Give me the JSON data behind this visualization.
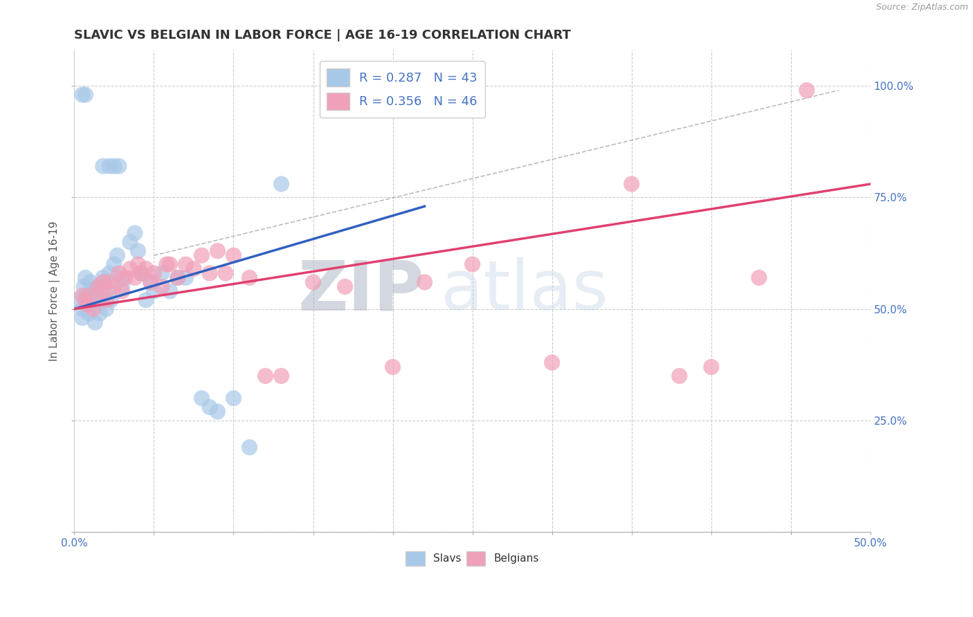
{
  "title": "SLAVIC VS BELGIAN IN LABOR FORCE | AGE 16-19 CORRELATION CHART",
  "source_text": "Source: ZipAtlas.com",
  "ylabel": "In Labor Force | Age 16-19",
  "xlim": [
    0.0,
    0.5
  ],
  "ylim": [
    0.0,
    1.08
  ],
  "slavs_R": 0.287,
  "slavs_N": 43,
  "belgians_R": 0.356,
  "belgians_N": 46,
  "slav_color": "#a8c8e8",
  "belgian_color": "#f0a0b8",
  "slav_line_color": "#3060c0",
  "belgian_line_color": "#e04070",
  "ref_line_color": "#aaaaaa",
  "slav_scatter_x": [
    0.003,
    0.005,
    0.005,
    0.006,
    0.007,
    0.008,
    0.009,
    0.01,
    0.01,
    0.011,
    0.012,
    0.013,
    0.014,
    0.015,
    0.016,
    0.017,
    0.018,
    0.019,
    0.02,
    0.021,
    0.022,
    0.023,
    0.025,
    0.027,
    0.03,
    0.03,
    0.035,
    0.038,
    0.04,
    0.042,
    0.045,
    0.048,
    0.05,
    0.055,
    0.06,
    0.065,
    0.07,
    0.08,
    0.085,
    0.09,
    0.1,
    0.11,
    0.13
  ],
  "slav_scatter_y": [
    0.52,
    0.48,
    0.5,
    0.55,
    0.57,
    0.53,
    0.49,
    0.51,
    0.56,
    0.54,
    0.52,
    0.47,
    0.53,
    0.55,
    0.49,
    0.52,
    0.57,
    0.56,
    0.5,
    0.54,
    0.58,
    0.52,
    0.6,
    0.62,
    0.55,
    0.57,
    0.65,
    0.67,
    0.63,
    0.58,
    0.52,
    0.56,
    0.54,
    0.58,
    0.54,
    0.57,
    0.57,
    0.3,
    0.28,
    0.27,
    0.3,
    0.19,
    0.78
  ],
  "slav_outlier_top_x": [
    0.005,
    0.007,
    0.018,
    0.022,
    0.025,
    0.028
  ],
  "slav_outlier_top_y": [
    0.98,
    0.98,
    0.82,
    0.82,
    0.82,
    0.82
  ],
  "belgian_scatter_x": [
    0.005,
    0.007,
    0.008,
    0.01,
    0.012,
    0.015,
    0.017,
    0.018,
    0.02,
    0.022,
    0.025,
    0.028,
    0.03,
    0.032,
    0.035,
    0.038,
    0.04,
    0.042,
    0.045,
    0.048,
    0.05,
    0.055,
    0.058,
    0.06,
    0.065,
    0.07,
    0.075,
    0.08,
    0.085,
    0.09,
    0.095,
    0.1,
    0.11,
    0.12,
    0.13,
    0.15,
    0.17,
    0.2,
    0.22,
    0.25,
    0.3,
    0.35,
    0.38,
    0.4,
    0.43,
    0.46
  ],
  "belgian_scatter_y": [
    0.53,
    0.52,
    0.51,
    0.53,
    0.5,
    0.55,
    0.54,
    0.56,
    0.52,
    0.56,
    0.55,
    0.58,
    0.54,
    0.57,
    0.59,
    0.57,
    0.6,
    0.58,
    0.59,
    0.56,
    0.58,
    0.55,
    0.6,
    0.6,
    0.57,
    0.6,
    0.59,
    0.62,
    0.58,
    0.63,
    0.58,
    0.62,
    0.57,
    0.35,
    0.35,
    0.56,
    0.55,
    0.37,
    0.56,
    0.6,
    0.38,
    0.78,
    0.35,
    0.37,
    0.57,
    0.99
  ],
  "slav_trend_x": [
    0.0,
    0.22
  ],
  "slav_trend_y": [
    0.5,
    0.73
  ],
  "belg_trend_x": [
    0.0,
    0.5
  ],
  "belg_trend_y": [
    0.5,
    0.78
  ],
  "ref_line_x": [
    0.05,
    0.48
  ],
  "ref_line_y": [
    0.62,
    0.99
  ],
  "watermark_zip": "ZIP",
  "watermark_atlas": "atlas",
  "background_color": "#ffffff",
  "grid_color": "#cccccc",
  "ytick_labels_right": [
    "100.0%",
    "75.0%",
    "50.0%",
    "25.0%"
  ],
  "ytick_vals_right": [
    1.0,
    0.75,
    0.5,
    0.25
  ]
}
